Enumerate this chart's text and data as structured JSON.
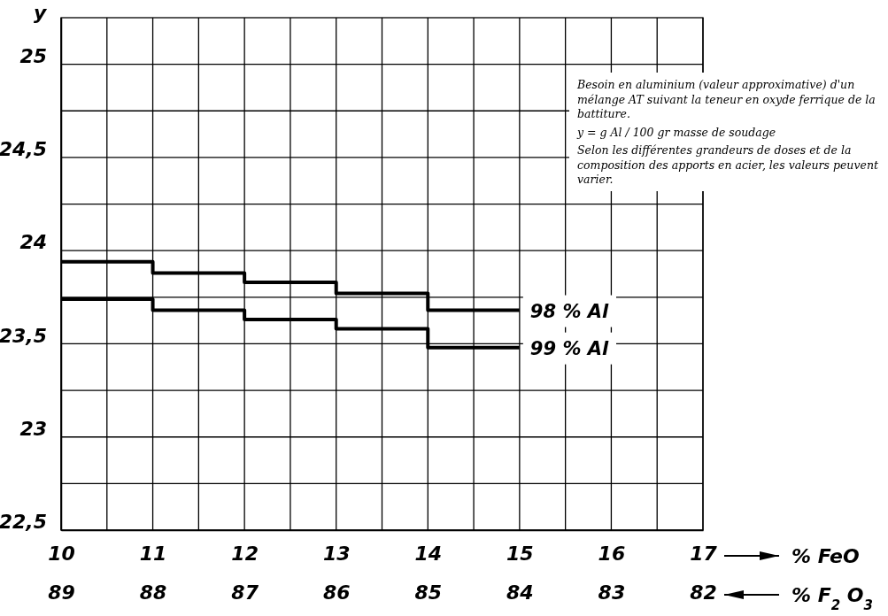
{
  "chart_data": {
    "type": "step",
    "ylabel": "y",
    "xlabel": "% FeO",
    "x2label": "% F$_{2}$ O$_{3}$",
    "x": [
      10,
      11,
      12,
      13,
      14,
      15
    ],
    "series": [
      {
        "name": "98 % Al",
        "color": "#000000",
        "values": [
          23.94,
          23.88,
          23.83,
          23.77,
          23.68,
          23.68
        ]
      },
      {
        "name": "99 % Al",
        "color": "#000000",
        "values": [
          23.74,
          23.68,
          23.63,
          23.58,
          23.48,
          23.48
        ]
      }
    ],
    "xlim": [
      10,
      17
    ],
    "xticks": [
      10,
      {
        "value": 10.5,
        "label": null
      },
      11,
      {
        "value": 11.5,
        "label": null
      },
      12,
      {
        "value": 12.5,
        "label": null
      },
      13,
      {
        "value": 13.5,
        "label": null
      },
      14,
      {
        "value": 14.5,
        "label": null
      },
      15,
      {
        "value": 15.5,
        "label": null
      },
      16,
      {
        "value": 16.5,
        "label": null
      },
      17
    ],
    "x2lim": [
      89,
      82
    ],
    "x2ticks": [
      89,
      88,
      87,
      86,
      85,
      84,
      83,
      82
    ],
    "ylim": [
      22.5,
      25.25
    ],
    "yticks": [
      {
        "value": 22.5,
        "label": "22,5"
      },
      {
        "value": 22.75,
        "label": null
      },
      23,
      {
        "value": 23.25,
        "label": null
      },
      {
        "value": 23.5,
        "label": "23,5"
      },
      {
        "value": 23.75,
        "label": null
      },
      24,
      {
        "value": 24.25,
        "label": null
      },
      {
        "value": 24.5,
        "label": "24,5"
      },
      {
        "value": 24.75,
        "label": null
      },
      25
    ],
    "grid": true,
    "line_style": "solid",
    "annotations": [
      "Besoin en aluminium (valeur approximative) d'un mélange AT suivant la teneur en oxyde ferrique de la battiture.",
      "y = g Al / 100 gr masse de soudage",
      "Selon les différentes grandeurs de doses et de la composition des apports en acier, les valeurs peuvent varier."
    ]
  }
}
